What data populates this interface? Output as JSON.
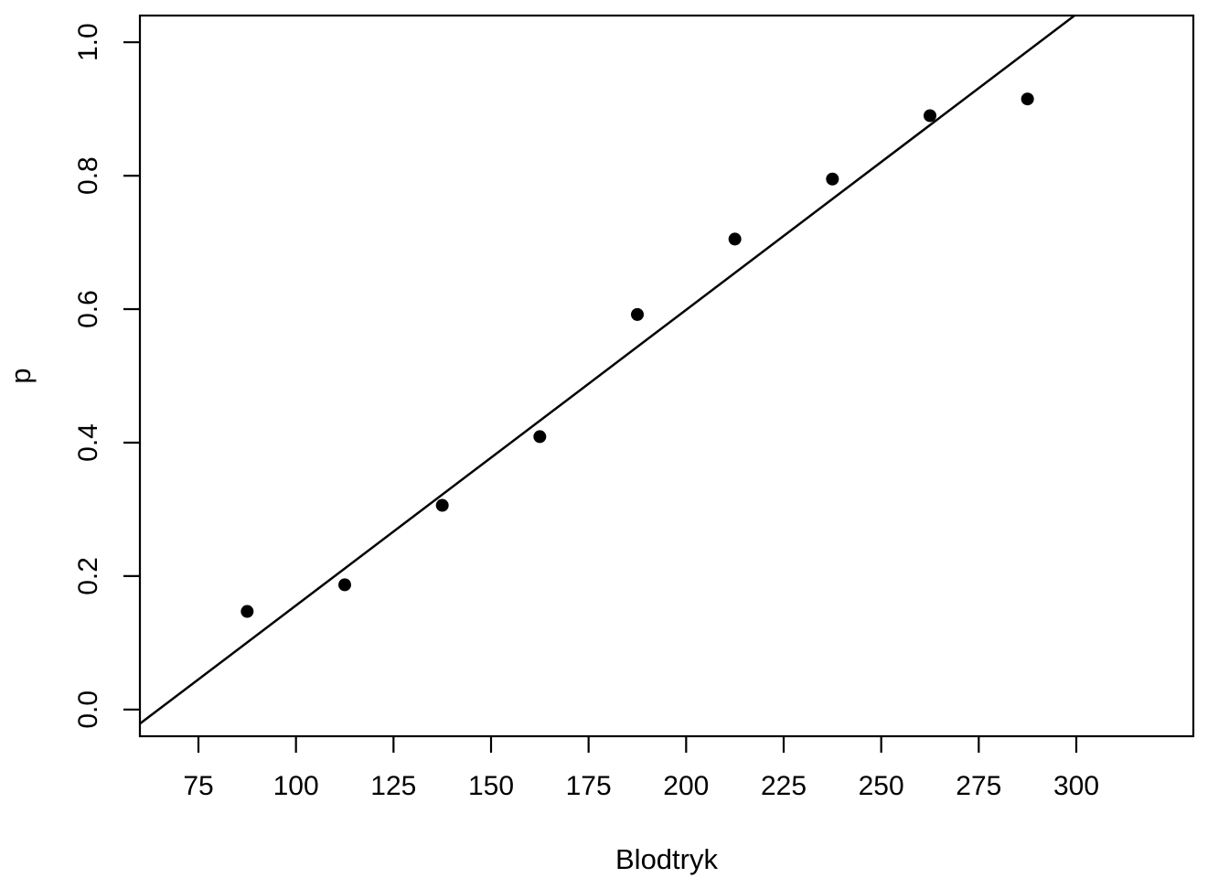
{
  "figure": {
    "background": "#ffffff"
  },
  "chart_data": {
    "type": "scatter",
    "title": "",
    "xlabel": "Blodtryk",
    "ylabel": "p",
    "x": [
      87.5,
      112.5,
      137.5,
      162.5,
      187.5,
      212.5,
      237.5,
      262.5,
      287.5
    ],
    "y": [
      0.147,
      0.187,
      0.306,
      0.409,
      0.592,
      0.705,
      0.795,
      0.89,
      0.915
    ],
    "x_ticks": [
      75,
      100,
      125,
      150,
      175,
      200,
      225,
      250,
      275,
      300
    ],
    "y_ticks": [
      "0.0",
      "0.2",
      "0.4",
      "0.6",
      "0.8",
      "1.0"
    ],
    "xlim": [
      60,
      330
    ],
    "ylim": [
      -0.04,
      1.04
    ],
    "fit_line": {
      "slope": 0.00443,
      "intercept": -0.287
    },
    "point_color": "#000000",
    "line_color": "#000000",
    "axis_color": "#000000",
    "grid": false,
    "legend": null
  }
}
